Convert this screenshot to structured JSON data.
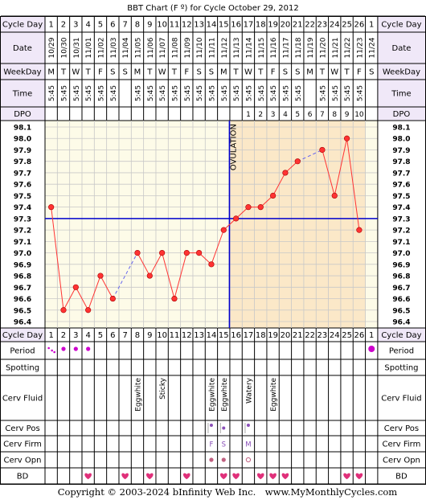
{
  "title": "BBT Chart (F º) for Cycle October 29, 2012",
  "copyright": "Copyright © 2003-2024 bInfinity Web Inc.",
  "website": "www.MyMonthlyCycles.com",
  "row_labels": {
    "cycle_day": "Cycle Day",
    "date": "Date",
    "weekday": "WeekDay",
    "time": "Time",
    "dpo": "DPO",
    "period": "Period",
    "spotting": "Spotting",
    "cerv_fluid": "Cerv Fluid",
    "cerv_pos": "Cerv Pos",
    "cerv_firm": "Cerv Firm",
    "cerv_opn": "Cerv Opn",
    "bd": "BD"
  },
  "colors": {
    "temp_line": "#ff3333",
    "coverline": "#0000cc",
    "ovulation_line": "#0000cc",
    "luteal_bg": "#fbe8c8",
    "follicular_bg": "#fdfbe8",
    "header_bg": "#f0e8f8",
    "heart": "#e0307a",
    "period_dot": "#cc00cc",
    "grid": "#c8c8c8"
  },
  "chart_data": {
    "type": "line",
    "title": "BBT Chart (F º) for Cycle October 29, 2012",
    "cycle_days": [
      "1",
      "2",
      "3",
      "4",
      "5",
      "6",
      "7",
      "8",
      "9",
      "10",
      "11",
      "12",
      "13",
      "14",
      "15",
      "16",
      "17",
      "18",
      "19",
      "20",
      "21",
      "22",
      "23",
      "24",
      "25",
      "26",
      "1"
    ],
    "dates": [
      "10/29",
      "10/30",
      "10/31",
      "11/01",
      "11/02",
      "11/03",
      "11/04",
      "11/05",
      "11/06",
      "11/07",
      "11/08",
      "11/09",
      "11/10",
      "11/11",
      "11/12",
      "11/13",
      "11/14",
      "11/15",
      "11/16",
      "11/17",
      "11/18",
      "11/19",
      "11/20",
      "11/21",
      "11/22",
      "11/23",
      "11/24"
    ],
    "weekdays": [
      "M",
      "T",
      "W",
      "T",
      "F",
      "S",
      "S",
      "M",
      "T",
      "W",
      "T",
      "F",
      "S",
      "S",
      "M",
      "T",
      "W",
      "T",
      "F",
      "S",
      "S",
      "M",
      "T",
      "W",
      "T",
      "F",
      "S"
    ],
    "times": [
      "5:45",
      "5:45",
      "5:45",
      "5:45",
      "5:45",
      "5:45",
      "",
      "5:45",
      "5:45",
      "5:45",
      "5:45",
      "5:45",
      "5:45",
      "5:45",
      "5:45",
      "5:45",
      "5:45",
      "5:45",
      "5:45",
      "5:45",
      "5:45",
      "",
      "5:45",
      "5:45",
      "5:45",
      "5:45",
      ""
    ],
    "dpo": [
      "",
      "",
      "",
      "",
      "",
      "",
      "",
      "",
      "",
      "",
      "",
      "",
      "",
      "",
      "",
      "",
      "1",
      "2",
      "3",
      "4",
      "5",
      "6",
      "7",
      "8",
      "9",
      "10",
      ""
    ],
    "temperatures": [
      97.4,
      96.5,
      96.7,
      96.5,
      96.8,
      96.6,
      null,
      97.0,
      96.8,
      97.0,
      96.6,
      97.0,
      97.0,
      96.9,
      97.2,
      97.3,
      97.4,
      97.4,
      97.5,
      97.7,
      97.8,
      null,
      97.9,
      97.5,
      98.0,
      97.2,
      null
    ],
    "y_ticks": [
      "98.1",
      "98.0",
      "97.9",
      "97.8",
      "97.7",
      "97.6",
      "97.5",
      "97.4",
      "97.3",
      "97.2",
      "97.1",
      "97.0",
      "96.9",
      "96.8",
      "96.7",
      "96.6",
      "96.5",
      "96.4"
    ],
    "ylim": [
      96.4,
      98.1
    ],
    "coverline": 97.3,
    "ovulation_day_index": 15,
    "ovulation_label": "OVULATION",
    "period": [
      "light",
      "medium",
      "medium",
      "medium",
      "",
      "",
      "",
      "",
      "",
      "",
      "",
      "",
      "",
      "",
      "",
      "",
      "",
      "",
      "",
      "",
      "",
      "",
      "",
      "",
      "",
      "",
      "medium"
    ],
    "cerv_fluid": [
      "",
      "",
      "",
      "",
      "",
      "",
      "",
      "Eggwhite",
      "",
      "Sticky",
      "",
      "",
      "",
      "Eggwhite",
      "Eggwhite",
      "",
      "Watery",
      "",
      "Eggwhite",
      "",
      "",
      "",
      "",
      "",
      "",
      "",
      ""
    ],
    "cerv_pos": [
      "",
      "",
      "",
      "",
      "",
      "",
      "",
      "",
      "",
      "",
      "",
      "",
      "",
      "high",
      "medium",
      "",
      "high",
      "",
      "",
      "",
      "",
      "",
      "",
      "",
      "",
      "",
      ""
    ],
    "cerv_firm": [
      "",
      "",
      "",
      "",
      "",
      "",
      "",
      "",
      "",
      "",
      "",
      "",
      "",
      "F",
      "S",
      "",
      "M",
      "",
      "",
      "",
      "",
      "",
      "",
      "",
      "",
      "",
      ""
    ],
    "cerv_opn": [
      "",
      "",
      "",
      "",
      "",
      "",
      "",
      "",
      "",
      "",
      "",
      "",
      "",
      "closed",
      "closed",
      "",
      "open",
      "",
      "",
      "",
      "",
      "",
      "",
      "",
      "",
      "",
      ""
    ],
    "bd": [
      false,
      false,
      false,
      true,
      false,
      false,
      true,
      false,
      true,
      false,
      false,
      true,
      false,
      false,
      true,
      true,
      false,
      true,
      true,
      true,
      false,
      false,
      false,
      false,
      true,
      true,
      false
    ]
  }
}
